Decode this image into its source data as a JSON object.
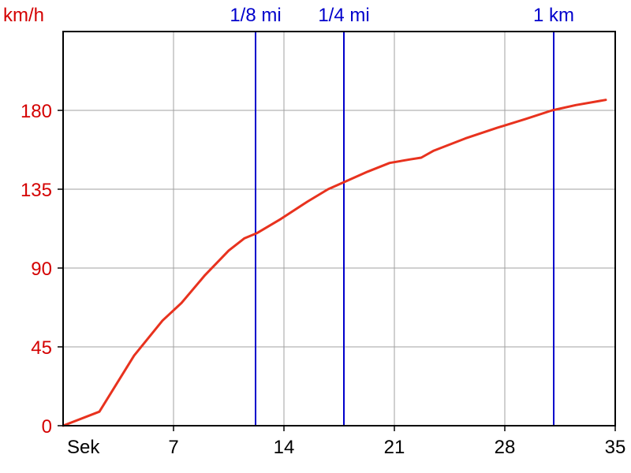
{
  "chart_data": {
    "type": "line",
    "ylabel": "km/h",
    "xlabel": "Sek",
    "xlim": [
      0,
      35
    ],
    "ylim": [
      0,
      225
    ],
    "x_ticks": [
      7,
      14,
      21,
      28,
      35
    ],
    "y_ticks": [
      0,
      45,
      90,
      135,
      180
    ],
    "grid": true,
    "series": [
      {
        "color": "#e8321e",
        "x": [
          0,
          2.3,
          4.5,
          6.3,
          7.5,
          9.0,
          10.5,
          11.5,
          12.3,
          13.8,
          15.5,
          16.8,
          17.8,
          19.3,
          20.7,
          22.0,
          22.7,
          23.5,
          25.5,
          27.5,
          29.3,
          31.0,
          32.5,
          34.4
        ],
        "y": [
          0,
          8,
          40,
          60,
          70,
          86,
          100,
          107,
          110,
          118,
          128,
          135,
          139,
          145,
          150,
          152,
          153,
          157,
          164,
          170,
          175,
          180,
          183,
          186
        ]
      }
    ],
    "markers": [
      {
        "label": "1/8 mi",
        "x": 12.2
      },
      {
        "label": "1/4 mi",
        "x": 17.8
      },
      {
        "label": "1 km",
        "x": 31.1
      }
    ]
  },
  "colors": {
    "axis_label": "#d40000",
    "marker": "#0000cc",
    "line": "#e8321e",
    "grid": "#a0a0a0"
  }
}
